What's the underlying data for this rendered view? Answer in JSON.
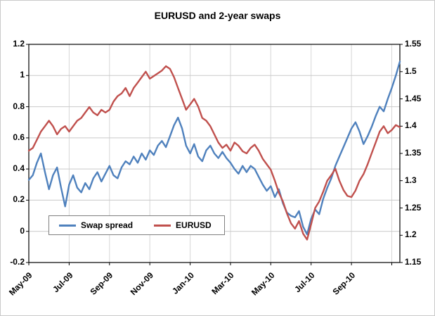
{
  "title": "EURUSD and 2-year swaps",
  "legend": {
    "items": [
      {
        "label": "Swap spread",
        "color": "#4F81BD"
      },
      {
        "label": "EURUSD",
        "color": "#C0504D"
      }
    ]
  },
  "left_axis": {
    "ticks": [
      "1.2",
      "1",
      "0.8",
      "0.6",
      "0.4",
      "0.2",
      "0",
      "-0.2"
    ],
    "min": -0.2,
    "max": 1.2
  },
  "right_axis": {
    "ticks": [
      "1.55",
      "1.5",
      "1.45",
      "1.4",
      "1.35",
      "1.3",
      "1.25",
      "1.2",
      "1.15"
    ],
    "min": 1.15,
    "max": 1.55
  },
  "x_axis": {
    "labels": [
      "May-09",
      "Jul-09",
      "Sep-09",
      "Nov-09",
      "Jan-10",
      "Mar-10",
      "May-10",
      "Jul-10",
      "Sep-10"
    ],
    "label_positions": [
      0,
      2,
      4,
      6,
      8,
      10,
      12,
      14,
      16
    ],
    "min": 0,
    "max": 18.4
  },
  "chart_data": {
    "type": "line",
    "title": "EURUSD and 2-year swaps",
    "x_unit": "months since May-2009, tick labels every 2 months",
    "x_start": 0,
    "x_step": 0.2,
    "left_ylim": [
      -0.2,
      1.2
    ],
    "right_ylim": [
      1.15,
      1.55
    ],
    "grid": true,
    "legend_position": "inside-bottom-left",
    "series": [
      {
        "name": "Swap spread",
        "axis": "left",
        "color": "#4F81BD",
        "values": [
          0.33,
          0.36,
          0.44,
          0.5,
          0.38,
          0.27,
          0.36,
          0.41,
          0.28,
          0.16,
          0.3,
          0.36,
          0.28,
          0.25,
          0.31,
          0.27,
          0.34,
          0.38,
          0.32,
          0.37,
          0.42,
          0.36,
          0.34,
          0.41,
          0.45,
          0.43,
          0.48,
          0.44,
          0.5,
          0.46,
          0.52,
          0.49,
          0.55,
          0.58,
          0.54,
          0.61,
          0.68,
          0.73,
          0.66,
          0.55,
          0.5,
          0.56,
          0.48,
          0.45,
          0.52,
          0.55,
          0.5,
          0.47,
          0.51,
          0.47,
          0.44,
          0.4,
          0.37,
          0.42,
          0.38,
          0.42,
          0.4,
          0.35,
          0.3,
          0.26,
          0.29,
          0.22,
          0.27,
          0.18,
          0.12,
          0.1,
          0.09,
          0.13,
          0.03,
          -0.02,
          0.08,
          0.14,
          0.11,
          0.21,
          0.28,
          0.34,
          0.42,
          0.48,
          0.54,
          0.6,
          0.66,
          0.7,
          0.64,
          0.56,
          0.61,
          0.67,
          0.74,
          0.8,
          0.77,
          0.85,
          0.92,
          1.0,
          1.09
        ]
      },
      {
        "name": "EURUSD",
        "axis": "right",
        "color": "#C0504D",
        "values": [
          1.355,
          1.36,
          1.375,
          1.39,
          1.4,
          1.41,
          1.4,
          1.385,
          1.395,
          1.4,
          1.39,
          1.4,
          1.41,
          1.415,
          1.425,
          1.435,
          1.425,
          1.42,
          1.43,
          1.425,
          1.43,
          1.445,
          1.455,
          1.46,
          1.47,
          1.455,
          1.47,
          1.48,
          1.49,
          1.5,
          1.487,
          1.492,
          1.497,
          1.502,
          1.51,
          1.505,
          1.49,
          1.47,
          1.45,
          1.43,
          1.44,
          1.45,
          1.436,
          1.415,
          1.41,
          1.4,
          1.385,
          1.37,
          1.36,
          1.366,
          1.355,
          1.37,
          1.364,
          1.354,
          1.35,
          1.36,
          1.366,
          1.355,
          1.34,
          1.33,
          1.32,
          1.3,
          1.278,
          1.262,
          1.24,
          1.222,
          1.212,
          1.226,
          1.203,
          1.192,
          1.22,
          1.25,
          1.262,
          1.28,
          1.3,
          1.31,
          1.322,
          1.3,
          1.283,
          1.272,
          1.27,
          1.282,
          1.3,
          1.312,
          1.33,
          1.35,
          1.37,
          1.39,
          1.4,
          1.387,
          1.393,
          1.402,
          1.398
        ]
      }
    ]
  }
}
